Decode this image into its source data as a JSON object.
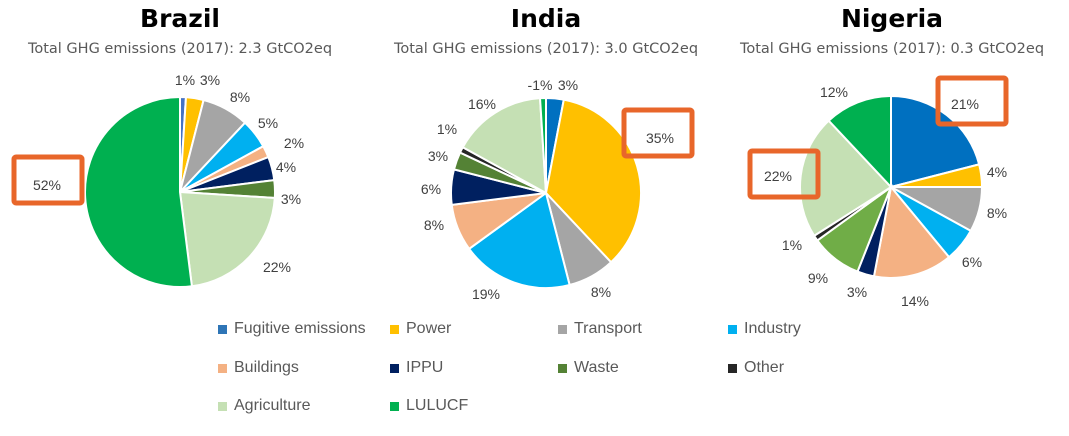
{
  "chart_data": [
    {
      "type": "pie",
      "title": "Brazil",
      "subtitle": "Total GHG emissions (2017): 2.3 GtCO2eq",
      "categories": [
        "Fugitive emissions",
        "Power",
        "Transport",
        "Industry",
        "Buildings",
        "IPPU",
        "Waste",
        "Other",
        "Agriculture",
        "LULUCF"
      ],
      "values": [
        1,
        3,
        8,
        5,
        2,
        4,
        3,
        0,
        22,
        52
      ],
      "labels": [
        "1%",
        "3%",
        "8%",
        "5%",
        "2%",
        "4%",
        "3%",
        "",
        "22%",
        "52%"
      ],
      "highlighted": [
        "LULUCF"
      ]
    },
    {
      "type": "pie",
      "title": "India",
      "subtitle": "Total GHG emissions (2017): 3.0 GtCO2eq",
      "categories": [
        "Fugitive emissions",
        "Power",
        "Transport",
        "Industry",
        "Buildings",
        "IPPU",
        "Waste",
        "Other",
        "Agriculture",
        "LULUCF"
      ],
      "values": [
        3,
        35,
        8,
        19,
        8,
        6,
        3,
        1,
        16,
        -1
      ],
      "labels": [
        "3%",
        "35%",
        "8%",
        "19%",
        "8%",
        "6%",
        "3%",
        "1%",
        "16%",
        "-1%"
      ],
      "highlighted": [
        "Power"
      ]
    },
    {
      "type": "pie",
      "title": "Nigeria",
      "subtitle": "Total GHG emissions (2017): 0.3 GtCO2eq",
      "categories": [
        "Fugitive emissions",
        "Power",
        "Transport",
        "Industry",
        "Buildings",
        "IPPU",
        "Waste",
        "Other",
        "Agriculture",
        "LULUCF"
      ],
      "values": [
        21,
        4,
        8,
        6,
        14,
        3,
        9,
        1,
        22,
        12
      ],
      "labels": [
        "21%",
        "4%",
        "8%",
        "6%",
        "14%",
        "3%",
        "9%",
        "1%",
        "22%",
        "12%"
      ],
      "highlighted": [
        "Fugitive emissions",
        "Agriculture"
      ]
    }
  ],
  "legend": [
    {
      "label": "Fugitive emissions",
      "color": "#2E75B6"
    },
    {
      "label": "Power",
      "color": "#FFC000"
    },
    {
      "label": "Transport",
      "color": "#A5A5A5"
    },
    {
      "label": "Industry",
      "color": "#00B0F0"
    },
    {
      "label": "Buildings",
      "color": "#F4B183"
    },
    {
      "label": "IPPU",
      "color": "#002060"
    },
    {
      "label": "Waste",
      "color": "#548235"
    },
    {
      "label": "Other",
      "color": "#262626"
    },
    {
      "label": "Agriculture",
      "color": "#C5E0B4"
    },
    {
      "label": "LULUCF",
      "color": "#00B050"
    }
  ],
  "colors": {
    "Fugitive emissions": "#0070C0",
    "Power": "#FFC000",
    "Transport": "#A5A5A5",
    "Industry": "#00B0F0",
    "Buildings": "#F4B183",
    "IPPU": "#002060",
    "Waste": "#548235",
    "Other": "#262626",
    "Agriculture": "#C5E0B4",
    "LULUCF": "#00B050",
    "highlight": "#E8662A"
  }
}
